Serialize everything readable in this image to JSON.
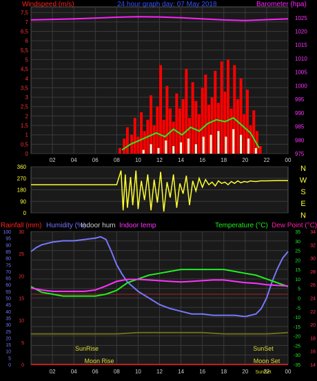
{
  "header": {
    "left_title": "Windspeed (m/s)",
    "center_title": "24 hour graph day:  07 May 2018",
    "right_title": "Barometer (hpa)"
  },
  "colors": {
    "windspeed": "#ff2020",
    "gust": "#ff0000",
    "avg_wind": "#22ee22",
    "light_wind": "#ddffdd",
    "barometer": "#ff22ff",
    "wind_dir": "#ffff33",
    "humidity": "#7777ff",
    "indoor_hum": "#cccccc",
    "indoor_temp": "#ff33ff",
    "temperature": "#22ee22",
    "dew_point": "#ff22aa",
    "rainfall": "#ff2222",
    "sun_moon": "#dddd33"
  },
  "chart_data": [
    {
      "type": "line",
      "title": "24 hour graph day:  07 May 2018",
      "ylabel_left": "Windspeed (m/s)",
      "ylabel_right": "Barometer (hpa)",
      "x_ticks": [
        "02",
        "04",
        "06",
        "08",
        "10",
        "12",
        "14",
        "16",
        "18",
        "20",
        "22",
        "00"
      ],
      "xlim": [
        0,
        24
      ],
      "y_ticks_left": [
        "0",
        "0,5",
        "1",
        "1,5",
        "2",
        "2,5",
        "3",
        "3,5",
        "4",
        "4,5",
        "5",
        "5,5",
        "6",
        "6,5",
        "7",
        "7,5"
      ],
      "ylim_left": [
        0,
        7.8
      ],
      "y_ticks_right": [
        "975",
        "980",
        "985",
        "990",
        "995",
        "1000",
        "1005",
        "1010",
        "1015",
        "1020",
        "1025"
      ],
      "ylim_right": [
        975,
        1029
      ],
      "series": [
        {
          "key": "barometer",
          "axis": "right",
          "x": [
            0,
            2,
            4,
            6,
            8,
            10,
            12,
            14,
            16,
            18,
            20,
            22,
            24
          ],
          "y": [
            1024.2,
            1024.4,
            1024.6,
            1024.9,
            1025.2,
            1025.4,
            1025.3,
            1025.0,
            1024.6,
            1024.2,
            1024.0,
            1024.3,
            1024.6
          ]
        },
        {
          "key": "gust",
          "axis": "left",
          "x": [
            8.3,
            8.7,
            9.0,
            9.4,
            9.7,
            10.0,
            10.3,
            10.6,
            10.9,
            11.2,
            11.5,
            11.8,
            12.1,
            12.4,
            12.7,
            13.0,
            13.3,
            13.6,
            13.9,
            14.2,
            14.5,
            14.8,
            15.1,
            15.4,
            15.7,
            16.0,
            16.3,
            16.6,
            16.9,
            17.2,
            17.5,
            17.8,
            18.1,
            18.4,
            18.7,
            19.0,
            19.3,
            19.6,
            19.9,
            20.2,
            20.5,
            20.8,
            21.1,
            21.4
          ],
          "y": [
            0.3,
            0.8,
            1.4,
            1.0,
            1.9,
            0.9,
            2.2,
            1.2,
            1.8,
            3.1,
            1.5,
            2.5,
            4.7,
            1.8,
            3.6,
            2.4,
            1.7,
            3.2,
            2.4,
            2.9,
            4.5,
            1.9,
            3.8,
            2.8,
            2.1,
            3.5,
            4.2,
            2.6,
            3.0,
            4.4,
            2.7,
            4.9,
            3.3,
            5.0,
            2.4,
            4.7,
            2.9,
            4.0,
            2.1,
            3.4,
            1.5,
            2.3,
            1.2,
            0.4
          ]
        },
        {
          "key": "avg_wind",
          "axis": "left",
          "x": [
            8.5,
            9.3,
            10.1,
            10.9,
            11.7,
            12.5,
            13.3,
            14.1,
            14.9,
            15.7,
            16.5,
            17.3,
            18.1,
            18.9,
            19.7,
            20.5,
            21.3
          ],
          "y": [
            0.2,
            0.5,
            0.7,
            0.9,
            1.1,
            0.9,
            1.3,
            1.0,
            1.4,
            1.2,
            1.6,
            1.8,
            1.7,
            1.9,
            1.5,
            1.1,
            0.3
          ]
        },
        {
          "key": "light_wind",
          "axis": "left",
          "x": [
            10.5,
            11.2,
            11.9,
            12.6,
            13.3,
            14.0,
            14.7,
            15.4,
            16.1,
            16.8,
            17.5,
            18.2,
            18.9,
            19.6,
            20.3,
            21.0
          ],
          "y": [
            0.2,
            0.5,
            0.3,
            0.7,
            0.4,
            0.6,
            0.8,
            0.5,
            0.9,
            1.0,
            1.2,
            0.9,
            1.3,
            1.0,
            0.8,
            0.3
          ]
        }
      ]
    },
    {
      "type": "line",
      "ylabel": "Wind direction",
      "y_ticks": [
        "0",
        "90",
        "180",
        "270",
        "360"
      ],
      "ylim": [
        0,
        360
      ],
      "direction_labels": [
        "N",
        "W",
        "S",
        "E",
        "N"
      ],
      "x_ticks": [
        "02",
        "04",
        "06",
        "08",
        "10",
        "12",
        "14",
        "16",
        "18",
        "20",
        "22",
        "00"
      ],
      "xlim": [
        0,
        24
      ],
      "series": [
        {
          "key": "wind_dir",
          "x": [
            0,
            2,
            4,
            6,
            8,
            8.4,
            8.6,
            8.8,
            9.0,
            9.3,
            9.5,
            9.8,
            10.0,
            10.3,
            10.6,
            10.9,
            11.2,
            11.5,
            11.8,
            12.1,
            12.4,
            12.7,
            13.0,
            13.3,
            13.6,
            13.9,
            14.2,
            14.5,
            14.8,
            15.1,
            15.4,
            15.7,
            16.0,
            16.3,
            16.6,
            16.9,
            17.2,
            17.5,
            17.8,
            18.1,
            18.4,
            18.7,
            19.0,
            19.3,
            19.6,
            19.9,
            20.2,
            20.5,
            20.8,
            21.1,
            21.4,
            22,
            23,
            24
          ],
          "y": [
            220,
            220,
            220,
            220,
            220,
            330,
            20,
            300,
            40,
            280,
            60,
            330,
            30,
            250,
            100,
            300,
            20,
            260,
            80,
            320,
            10,
            240,
            120,
            300,
            40,
            230,
            150,
            290,
            60,
            250,
            170,
            270,
            200,
            260,
            220,
            240,
            210,
            250,
            230,
            240,
            220,
            245,
            230,
            250,
            235,
            245,
            240,
            250,
            245,
            245,
            250,
            250,
            252,
            252
          ]
        }
      ]
    },
    {
      "type": "line",
      "ylabels": [
        "Rainfall (mm)",
        "Humidity (%)",
        "Indoor hum",
        "Indoor temp",
        "Temperature (°C)",
        "Dew Point (°C)"
      ],
      "x_ticks": [
        "02",
        "04",
        "06",
        "08",
        "10",
        "12",
        "14",
        "16",
        "18",
        "20",
        "22",
        "00"
      ],
      "xlim": [
        0,
        24
      ],
      "y_ticks_humidity": [
        "0",
        "5",
        "10",
        "15",
        "20",
        "25",
        "30",
        "35",
        "40",
        "45",
        "50",
        "55",
        "60",
        "65",
        "70",
        "75",
        "80",
        "85",
        "90",
        "95",
        "100"
      ],
      "ylim_humidity": [
        0,
        100
      ],
      "y_ticks_rain": [
        "0",
        "5",
        "10",
        "15",
        "20",
        "25",
        "30"
      ],
      "ylim_rain": [
        0,
        30
      ],
      "y_ticks_temp": [
        "-35",
        "-30",
        "-25",
        "-20",
        "-15",
        "-10",
        "-5",
        "0",
        "5",
        "10",
        "15",
        "20",
        "25",
        "30",
        "35"
      ],
      "ylim_temp": [
        -35,
        35
      ],
      "y_ticks_indoor": [
        "14",
        "16",
        "18",
        "20",
        "22",
        "24",
        "26",
        "28",
        "30",
        "32",
        "34"
      ],
      "ylim_indoor": [
        14,
        34
      ],
      "annotations": [
        "SunRise",
        "SunSet",
        "Moon Rise",
        "Moon Set",
        "SunSet"
      ],
      "series": [
        {
          "key": "humidity",
          "axis": "humidity",
          "x": [
            0,
            0.5,
            1,
            2,
            3,
            4,
            5,
            6,
            6.5,
            7,
            7.5,
            8,
            8.5,
            9,
            10,
            11,
            12,
            13,
            14,
            15,
            16,
            17,
            18,
            19,
            20,
            21,
            21.5,
            22,
            22.5,
            23,
            23.5,
            24
          ],
          "y": [
            85,
            88,
            90,
            92,
            93,
            93,
            94,
            95,
            96,
            94,
            85,
            75,
            68,
            62,
            55,
            50,
            45,
            42,
            40,
            38,
            38,
            37,
            37,
            37,
            36,
            38,
            42,
            50,
            62,
            72,
            80,
            85
          ]
        },
        {
          "key": "temperature",
          "axis": "temp",
          "x": [
            0,
            1,
            2,
            3,
            4,
            5,
            6,
            7,
            8,
            9,
            10,
            11,
            12,
            13,
            14,
            15,
            16,
            17,
            18,
            19,
            20,
            21,
            22,
            23,
            24
          ],
          "y": [
            6,
            3,
            2,
            1,
            1,
            1,
            1,
            2,
            4,
            8,
            10,
            12,
            13,
            14,
            15,
            15,
            15,
            15,
            15,
            14,
            13,
            12,
            10,
            8,
            6
          ]
        },
        {
          "key": "indoor_temp",
          "axis": "indoor",
          "x": [
            0,
            1,
            2,
            3,
            4,
            5,
            6,
            7,
            8,
            9,
            10,
            11,
            12,
            13,
            14,
            15,
            16,
            17,
            18,
            19,
            20,
            21,
            22,
            23,
            24
          ],
          "y": [
            25.5,
            25.2,
            25.0,
            25.0,
            25.0,
            25.0,
            25.2,
            25.8,
            26.5,
            26.8,
            26.8,
            26.7,
            26.6,
            26.5,
            26.4,
            26.5,
            26.6,
            26.7,
            26.7,
            26.5,
            26.3,
            26.2,
            26.0,
            25.9,
            25.8
          ]
        },
        {
          "key": "dew_point",
          "axis": "temp",
          "x": [
            0,
            24
          ],
          "y": [
            2,
            2
          ]
        },
        {
          "key": "indoor_hum",
          "axis": "humidity",
          "x": [
            0,
            2,
            4,
            6,
            8,
            10,
            12,
            14,
            16,
            18,
            20,
            22,
            24
          ],
          "y": [
            23,
            23,
            23,
            23,
            23,
            24,
            24,
            24,
            24,
            23,
            23,
            23,
            24
          ]
        },
        {
          "key": "rainfall",
          "axis": "rain",
          "x": [
            0,
            24
          ],
          "y": [
            0,
            0
          ]
        }
      ]
    }
  ]
}
